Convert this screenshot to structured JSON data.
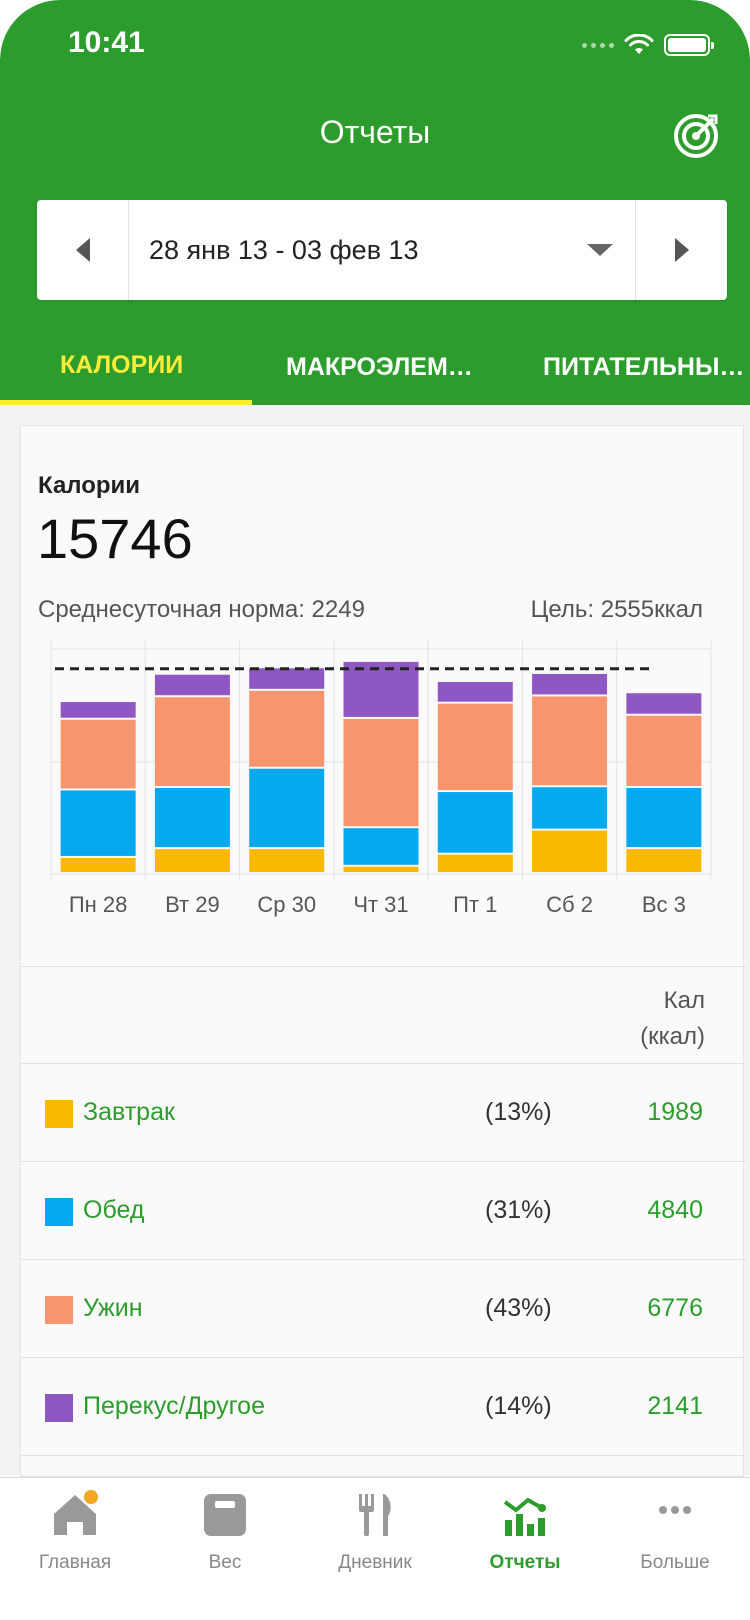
{
  "status_bar": {
    "time": "10:41"
  },
  "header": {
    "title": "Отчеты",
    "goal_icon": "target-icon"
  },
  "date_range": {
    "label": "28 янв 13 - 03 фев 13"
  },
  "tabs": [
    {
      "label": "КАЛОРИИ",
      "active": true
    },
    {
      "label": "МАКРОЭЛЕМ…",
      "active": false
    },
    {
      "label": "ПИТАТЕЛЬНЫ…",
      "active": false
    }
  ],
  "summary": {
    "title": "Калории",
    "total": "15746",
    "avg_label": "Среднесуточная норма: 2249",
    "goal_label": "Цель: 2555ккал"
  },
  "chart_data": {
    "type": "bar",
    "stacked": true,
    "categories": [
      "Пн 28",
      "Вт 29",
      "Ср 30",
      "Чт 31",
      "Пт 1",
      "Сб 2",
      "Вс 3"
    ],
    "series": [
      {
        "name": "Завтрак",
        "color": "#fbb800",
        "values": [
          200,
          310,
          310,
          90,
          240,
          540,
          310
        ]
      },
      {
        "name": "Обед",
        "color": "#06a9f0",
        "values": [
          840,
          760,
          1000,
          480,
          780,
          540,
          760
        ]
      },
      {
        "name": "Ужин",
        "color": "#f7956e",
        "values": [
          880,
          1130,
          970,
          1360,
          1100,
          1130,
          900
        ]
      },
      {
        "name": "Перекус/Другое",
        "color": "#8e57c3",
        "values": [
          220,
          280,
          280,
          710,
          270,
          280,
          280
        ]
      }
    ],
    "goal_line": 2555,
    "ylim": [
      0,
      2900
    ],
    "grid": true
  },
  "table": {
    "header_cal": "Кал",
    "header_unit": "(ккал)",
    "rows": [
      {
        "name": "Завтрак",
        "pct": "(13%)",
        "value": "1989",
        "color": "#fbb800"
      },
      {
        "name": "Обед",
        "pct": "(31%)",
        "value": "4840",
        "color": "#06a9f0"
      },
      {
        "name": "Ужин",
        "pct": "(43%)",
        "value": "6776",
        "color": "#f7956e"
      },
      {
        "name": "Перекус/Другое",
        "pct": "(14%)",
        "value": "2141",
        "color": "#8e57c3"
      }
    ]
  },
  "tabbar": [
    {
      "label": "Главная",
      "icon": "home-icon",
      "active": false,
      "badge": true
    },
    {
      "label": "Вес",
      "icon": "scale-icon",
      "active": false
    },
    {
      "label": "Дневник",
      "icon": "fork-knife-icon",
      "active": false
    },
    {
      "label": "Отчеты",
      "icon": "reports-icon",
      "active": true
    },
    {
      "label": "Больше",
      "icon": "more-icon",
      "active": false
    }
  ]
}
